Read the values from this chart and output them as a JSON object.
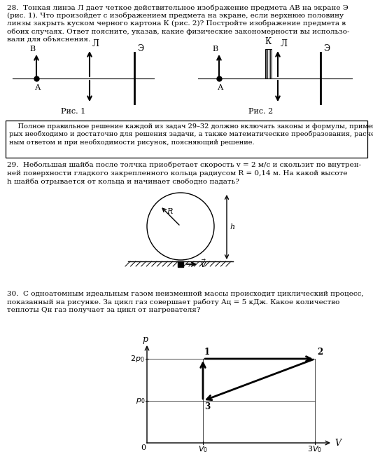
{
  "background_color": "#ffffff",
  "q28_line1": "28.  Тонкая линза Л дает четкое действительное изображение предмета AB на экране Э",
  "q28_line2": "(рис. 1). Что произойдет с изображением предмета на экране, если верхнюю половину",
  "q28_line3": "линзы закрыть куском черного картона К (рис. 2)? Постройте изображение предмета в",
  "q28_line4": "обоих случаях. Ответ поясните, указав, какие физические закономерности вы использо-",
  "q28_line5": "вали для объяснения.",
  "box_text1": "    Полное правильное решение каждой из задач 29–32 должно включать законы и формулы, применение кото-",
  "box_text2": "рых необходимо и достаточно для решения задачи, а также математические преобразования, расчеты с числен-",
  "box_text3": "ным ответом и при необходимости рисунок, поясняющий решение.",
  "q29_line1": "29.  Небольшая шайба после толчка приобретает скорость v = 2 м/с и скользит по внутрен-",
  "q29_line2": "ней поверхности гладкого закрепленного кольца радиусом R = 0,14 м. На какой высоте",
  "q29_line3": "h шайба отрывается от кольца и начинает свободно падать?",
  "q30_line1": "30.  С одноатомным идеальным газом неизменной массы происходит циклический процесс,",
  "q30_line2": "показанный на рисунке. За цикл газ совершает работу Aц = 5 кДж. Какое количество",
  "q30_line3": "теплоты Qн газ получает за цикл от нагревателя?"
}
